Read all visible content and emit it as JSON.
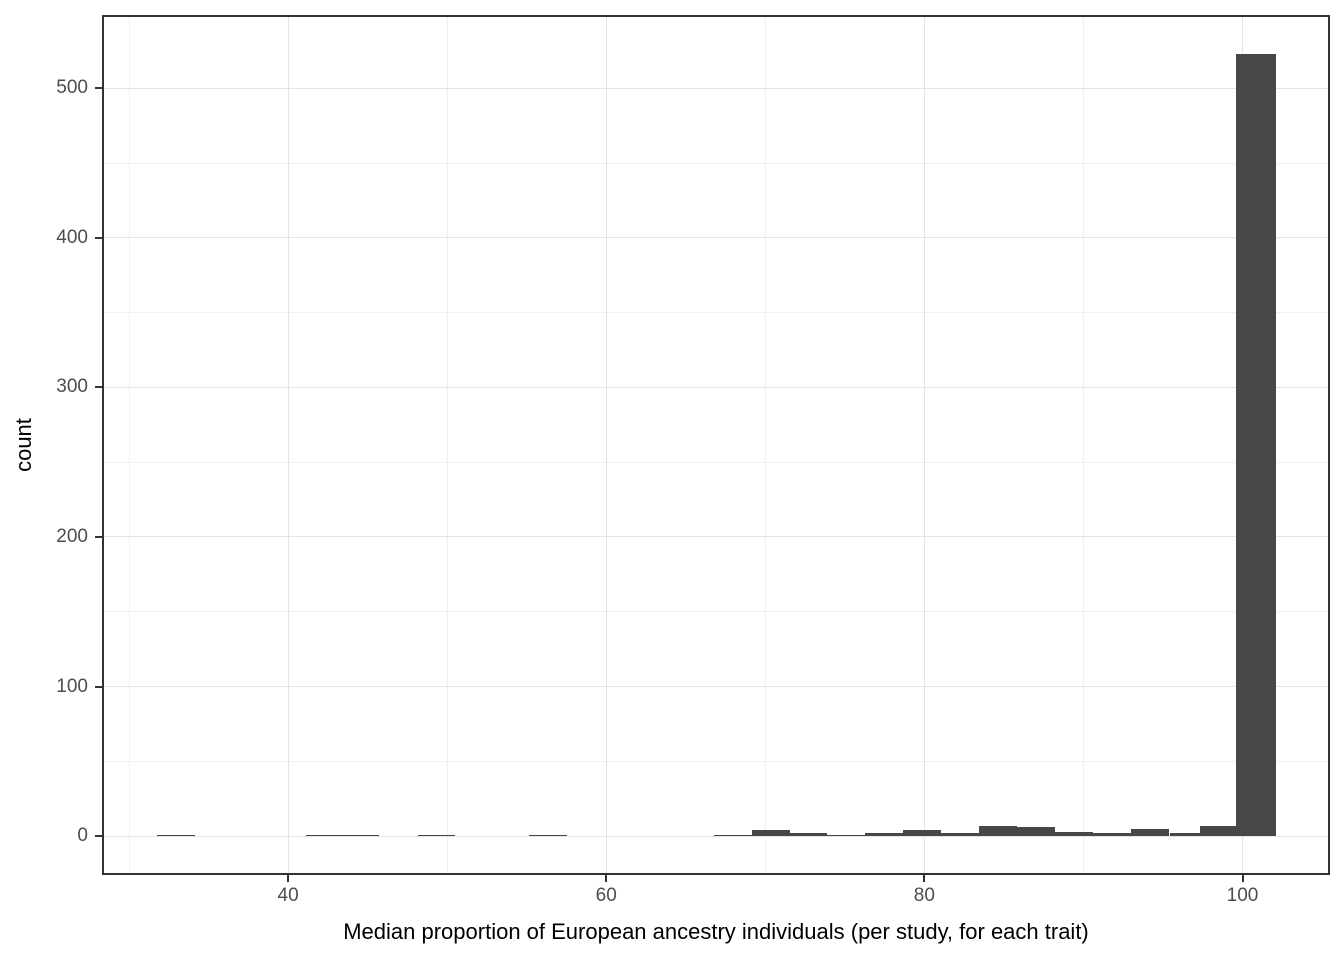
{
  "chart_data": {
    "type": "bar",
    "subtype": "histogram",
    "title": "",
    "xlabel": "Median proportion of European ancestry individuals (per study, for each trait)",
    "ylabel": "count",
    "xlim": [
      28.3,
      105.5
    ],
    "ylim": [
      -26,
      549
    ],
    "grid": "on",
    "legend": "none",
    "x_ticks": [
      40,
      60,
      80,
      100
    ],
    "x_tick_labels": [
      "40",
      "60",
      "80",
      "100"
    ],
    "x_minor_ticks": [
      30,
      50,
      70,
      90
    ],
    "y_ticks": [
      0,
      100,
      200,
      300,
      400,
      500
    ],
    "y_tick_labels": [
      "0",
      "100",
      "200",
      "300",
      "400",
      "500"
    ],
    "y_minor_ticks": [
      50,
      150,
      250,
      350,
      450
    ],
    "bins": [
      {
        "x0": 31.76,
        "x1": 34.15,
        "count": 1
      },
      {
        "x0": 41.13,
        "x1": 43.46,
        "count": 1
      },
      {
        "x0": 43.46,
        "x1": 45.72,
        "count": 1
      },
      {
        "x0": 48.18,
        "x1": 50.5,
        "count": 1
      },
      {
        "x0": 55.16,
        "x1": 57.55,
        "count": 1
      },
      {
        "x0": 66.79,
        "x1": 69.18,
        "count": 1
      },
      {
        "x0": 69.18,
        "x1": 71.57,
        "count": 4
      },
      {
        "x0": 71.57,
        "x1": 73.9,
        "count": 2
      },
      {
        "x0": 73.9,
        "x1": 76.29,
        "count": 1
      },
      {
        "x0": 76.29,
        "x1": 78.68,
        "count": 2
      },
      {
        "x0": 78.68,
        "x1": 81.07,
        "count": 4
      },
      {
        "x0": 81.07,
        "x1": 83.46,
        "count": 2
      },
      {
        "x0": 83.46,
        "x1": 85.85,
        "count": 7
      },
      {
        "x0": 85.85,
        "x1": 88.24,
        "count": 6
      },
      {
        "x0": 88.24,
        "x1": 90.63,
        "count": 3
      },
      {
        "x0": 90.63,
        "x1": 93.02,
        "count": 2
      },
      {
        "x0": 93.02,
        "x1": 95.41,
        "count": 5
      },
      {
        "x0": 95.41,
        "x1": 97.3,
        "count": 2
      },
      {
        "x0": 97.3,
        "x1": 99.62,
        "count": 7
      },
      {
        "x0": 99.62,
        "x1": 102.08,
        "count": 523
      }
    ],
    "colors": {
      "bar_fill": "#474747",
      "panel_border": "#333333",
      "grid_major": "#e3e3e3",
      "grid_minor": "#f0f0f0",
      "tick_mark": "#333333",
      "tick_label": "#4d4d4d",
      "axis_title": "#000000",
      "background": "#ffffff"
    }
  }
}
